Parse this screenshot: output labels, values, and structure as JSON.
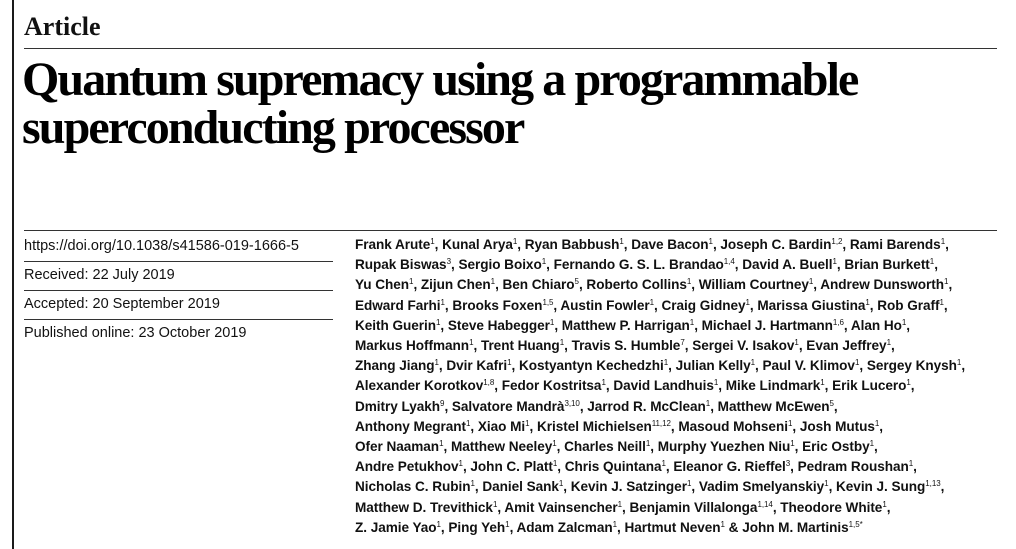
{
  "section_label": "Article",
  "title_lines": [
    "Quantum supremacy using a programmable",
    "superconducting processor"
  ],
  "meta": {
    "doi": "https://doi.org/10.1038/s41586-019-1666-5",
    "received": "Received: 22 July 2019",
    "accepted": "Accepted: 20 September 2019",
    "published": "Published online: 23 October 2019"
  },
  "author_lines": [
    [
      [
        "Frank Arute",
        "1"
      ],
      [
        "Kunal Arya",
        "1"
      ],
      [
        "Ryan Babbush",
        "1"
      ],
      [
        "Dave Bacon",
        "1"
      ],
      [
        "Joseph C. Bardin",
        "1,2"
      ],
      [
        "Rami Barends",
        "1"
      ]
    ],
    [
      [
        "Rupak Biswas",
        "3"
      ],
      [
        "Sergio Boixo",
        "1"
      ],
      [
        "Fernando G. S. L. Brandao",
        "1,4"
      ],
      [
        "David A. Buell",
        "1"
      ],
      [
        "Brian Burkett",
        "1"
      ]
    ],
    [
      [
        "Yu Chen",
        "1"
      ],
      [
        "Zijun Chen",
        "1"
      ],
      [
        "Ben Chiaro",
        "5"
      ],
      [
        "Roberto Collins",
        "1"
      ],
      [
        "William Courtney",
        "1"
      ],
      [
        "Andrew Dunsworth",
        "1"
      ]
    ],
    [
      [
        "Edward Farhi",
        "1"
      ],
      [
        "Brooks Foxen",
        "1,5"
      ],
      [
        "Austin Fowler",
        "1"
      ],
      [
        "Craig Gidney",
        "1"
      ],
      [
        "Marissa Giustina",
        "1"
      ],
      [
        "Rob Graff",
        "1"
      ]
    ],
    [
      [
        "Keith Guerin",
        "1"
      ],
      [
        "Steve Habegger",
        "1"
      ],
      [
        "Matthew P. Harrigan",
        "1"
      ],
      [
        "Michael J. Hartmann",
        "1,6"
      ],
      [
        "Alan Ho",
        "1"
      ]
    ],
    [
      [
        "Markus Hoffmann",
        "1"
      ],
      [
        "Trent Huang",
        "1"
      ],
      [
        "Travis S. Humble",
        "7"
      ],
      [
        "Sergei V. Isakov",
        "1"
      ],
      [
        "Evan Jeffrey",
        "1"
      ]
    ],
    [
      [
        "Zhang Jiang",
        "1"
      ],
      [
        "Dvir Kafri",
        "1"
      ],
      [
        "Kostyantyn Kechedzhi",
        "1"
      ],
      [
        "Julian Kelly",
        "1"
      ],
      [
        "Paul V. Klimov",
        "1"
      ],
      [
        "Sergey Knysh",
        "1"
      ]
    ],
    [
      [
        "Alexander Korotkov",
        "1,8"
      ],
      [
        "Fedor Kostritsa",
        "1"
      ],
      [
        "David Landhuis",
        "1"
      ],
      [
        "Mike Lindmark",
        "1"
      ],
      [
        "Erik Lucero",
        "1"
      ]
    ],
    [
      [
        "Dmitry Lyakh",
        "9"
      ],
      [
        "Salvatore Mandrà",
        "3,10"
      ],
      [
        "Jarrod R. McClean",
        "1"
      ],
      [
        "Matthew McEwen",
        "5"
      ]
    ],
    [
      [
        "Anthony Megrant",
        "1"
      ],
      [
        "Xiao Mi",
        "1"
      ],
      [
        "Kristel Michielsen",
        "11,12"
      ],
      [
        "Masoud Mohseni",
        "1"
      ],
      [
        "Josh Mutus",
        "1"
      ]
    ],
    [
      [
        "Ofer Naaman",
        "1"
      ],
      [
        "Matthew Neeley",
        "1"
      ],
      [
        "Charles Neill",
        "1"
      ],
      [
        "Murphy Yuezhen Niu",
        "1"
      ],
      [
        "Eric Ostby",
        "1"
      ]
    ],
    [
      [
        "Andre Petukhov",
        "1"
      ],
      [
        "John C. Platt",
        "1"
      ],
      [
        "Chris Quintana",
        "1"
      ],
      [
        "Eleanor G. Rieffel",
        "3"
      ],
      [
        "Pedram Roushan",
        "1"
      ]
    ],
    [
      [
        "Nicholas C. Rubin",
        "1"
      ],
      [
        "Daniel Sank",
        "1"
      ],
      [
        "Kevin J. Satzinger",
        "1"
      ],
      [
        "Vadim Smelyanskiy",
        "1"
      ],
      [
        "Kevin J. Sung",
        "1,13"
      ]
    ],
    [
      [
        "Matthew D. Trevithick",
        "1"
      ],
      [
        "Amit Vainsencher",
        "1"
      ],
      [
        "Benjamin Villalonga",
        "1,14"
      ],
      [
        "Theodore White",
        "1"
      ]
    ],
    [
      [
        "Z. Jamie Yao",
        "1"
      ],
      [
        "Ping Yeh",
        "1"
      ],
      [
        "Adam Zalcman",
        "1"
      ],
      [
        "Hartmut Neven",
        "1"
      ],
      [
        "John M. Martinis",
        "1,5*"
      ]
    ]
  ],
  "separator": ", ",
  "final_separator": " & "
}
